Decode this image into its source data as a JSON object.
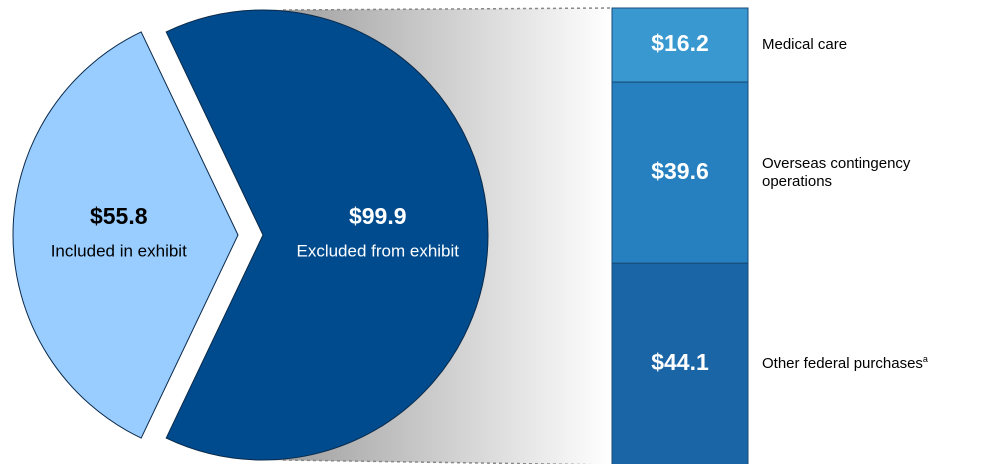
{
  "chart_data": [
    {
      "type": "pie",
      "categories": [
        "Included in exhibit",
        "Excluded from exhibit"
      ],
      "values": [
        55.8,
        99.9
      ],
      "value_labels": [
        "$55.8",
        "$99.9"
      ],
      "colors": [
        "#99ccff",
        "#004b8d"
      ],
      "label_colors": [
        "#000000",
        "#ffffff"
      ]
    },
    {
      "type": "bar",
      "stacked": true,
      "series": [
        {
          "name": "Medical care",
          "color": "#3a98d0",
          "values": [
            16.2
          ],
          "value_labels": [
            "$16.2"
          ]
        },
        {
          "name": "Overseas contingency operations",
          "color": "#2680bf",
          "values": [
            39.6
          ],
          "value_labels": [
            "$39.6"
          ]
        },
        {
          "name": "Other federal purchases",
          "note": "a",
          "color": "#1a65a6",
          "values": [
            44.1
          ],
          "value_labels": [
            "$44.1"
          ]
        }
      ]
    }
  ]
}
